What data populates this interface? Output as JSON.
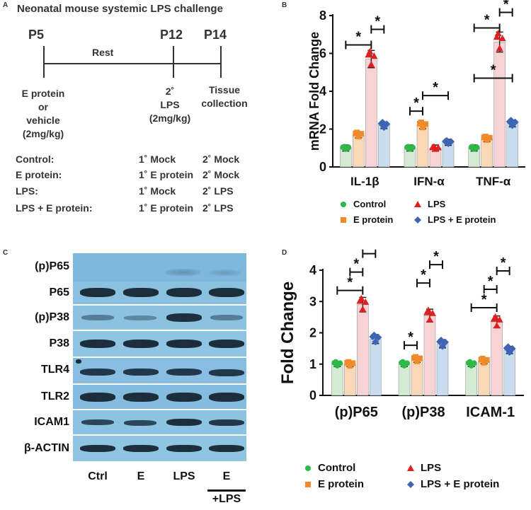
{
  "colors": {
    "control": "#2eb84a",
    "e_protein": "#f08a2b",
    "lps": "#e02020",
    "lps_e": "#3e64b4",
    "bar_control": "#d5ead2",
    "bar_e": "#f9d8b8",
    "bar_lps": "#f8d3d6",
    "bar_lpse": "#c9dcf0"
  },
  "panel_a": {
    "letter": "A",
    "title": "Neonatal mouse systemic LPS challenge",
    "timepoints": [
      "P5",
      "P12",
      "P14"
    ],
    "rest": "Rest",
    "p5_note": [
      "E protein",
      "or",
      "vehicle",
      "(2mg/kg)"
    ],
    "p12_note": [
      "2˚",
      "LPS",
      "(2mg/kg)"
    ],
    "p14_note": [
      "Tissue",
      "collection"
    ],
    "conditions": [
      {
        "name": "Control:",
        "first": "1˚ Mock",
        "second": "2˚ Mock"
      },
      {
        "name": "E protein:",
        "first": "1˚ E protein",
        "second": "2˚ Mock"
      },
      {
        "name": "LPS:",
        "first": "1˚ Mock",
        "second": "2˚ LPS"
      },
      {
        "name": "LPS + E protein:",
        "first": "1˚ E protein",
        "second": "2˚ LPS"
      }
    ]
  },
  "panel_c": {
    "letter": "C",
    "rows": [
      "(p)P65",
      "P65",
      "(p)P38",
      "P38",
      "TLR4",
      "TLR2",
      "ICAM1",
      "β-ACTIN"
    ],
    "columns": [
      "Ctrl",
      "E",
      "LPS",
      "E"
    ],
    "extra_label": "+LPS"
  },
  "legend": {
    "control": "Control",
    "e_protein": "E protein",
    "lps": "LPS",
    "lps_e": "LPS + E protein"
  },
  "chart_data": [
    {
      "panel": "B",
      "type": "bar",
      "ylabel": "mRNA Fold Change",
      "ylim": [
        0,
        8
      ],
      "yticks": [
        0,
        2,
        4,
        6,
        8
      ],
      "categories": [
        "IL-1β",
        "IFN-α",
        "TNF-α"
      ],
      "series": [
        {
          "name": "Control",
          "values": [
            1.0,
            1.0,
            1.0
          ]
        },
        {
          "name": "E protein",
          "values": [
            1.7,
            2.2,
            1.5
          ]
        },
        {
          "name": "LPS",
          "values": [
            5.7,
            1.0,
            6.6
          ]
        },
        {
          "name": "LPS + E protein",
          "values": [
            2.2,
            1.3,
            2.3
          ]
        }
      ],
      "significance": [
        {
          "group": "IL-1β",
          "from": "Control",
          "to": "LPS",
          "label": "*"
        },
        {
          "group": "IL-1β",
          "from": "LPS",
          "to": "LPS + E protein",
          "label": "*"
        },
        {
          "group": "IFN-α",
          "from": "Control",
          "to": "E protein",
          "label": "*"
        },
        {
          "group": "IFN-α",
          "from": "E protein",
          "to": "LPS + E protein",
          "label": "*"
        },
        {
          "group": "TNF-α",
          "from": "Control",
          "to": "LPS",
          "label": "*"
        },
        {
          "group": "TNF-α",
          "from": "LPS",
          "to": "LPS + E protein",
          "label": "*"
        },
        {
          "group": "TNF-α",
          "from": "Control",
          "to": "LPS + E protein",
          "label": "*"
        }
      ]
    },
    {
      "panel": "D",
      "type": "bar",
      "ylabel": "Fold Change",
      "ylim": [
        0,
        4
      ],
      "yticks": [
        0,
        1,
        2,
        3,
        4
      ],
      "categories": [
        "(p)P65",
        "(p)P38",
        "ICAM-1"
      ],
      "series": [
        {
          "name": "Control",
          "values": [
            1.0,
            1.0,
            1.0
          ]
        },
        {
          "name": "E protein",
          "values": [
            1.0,
            1.15,
            1.1
          ]
        },
        {
          "name": "LPS",
          "values": [
            2.9,
            2.55,
            2.35
          ]
        },
        {
          "name": "LPS + E protein",
          "values": [
            1.8,
            1.65,
            1.45
          ]
        }
      ],
      "significance": [
        {
          "group": "(p)P65",
          "from": "Control",
          "to": "LPS",
          "label": "*"
        },
        {
          "group": "(p)P65",
          "from": "E protein",
          "to": "LPS",
          "label": "*"
        },
        {
          "group": "(p)P65",
          "from": "LPS",
          "to": "LPS + E protein",
          "label": "*"
        },
        {
          "group": "(p)P38",
          "from": "Control",
          "to": "E protein",
          "label": "*"
        },
        {
          "group": "(p)P38",
          "from": "E protein",
          "to": "LPS",
          "label": "*"
        },
        {
          "group": "(p)P38",
          "from": "LPS",
          "to": "LPS + E protein",
          "label": "*"
        },
        {
          "group": "ICAM-1",
          "from": "Control",
          "to": "LPS",
          "label": "*"
        },
        {
          "group": "ICAM-1",
          "from": "E protein",
          "to": "LPS",
          "label": "*"
        },
        {
          "group": "ICAM-1",
          "from": "LPS",
          "to": "LPS + E protein",
          "label": "*"
        }
      ]
    }
  ]
}
